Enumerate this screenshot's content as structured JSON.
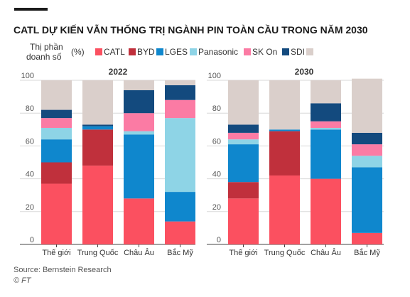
{
  "chart_data": {
    "type": "bar",
    "stacked": true,
    "title": "CATL DỰ KIẾN VẪN THỐNG TRỊ NGÀNH PIN TOÀN CẦU TRONG NĂM 2030",
    "legend_title": "Thị phần doanh số",
    "unit": "(%)",
    "legend_position": "top",
    "ylim": [
      0,
      100
    ],
    "yticks": [
      "0",
      "20",
      "40",
      "60",
      "80",
      "100"
    ],
    "grid": true,
    "source": "Source: Bernstein Research",
    "credit": "© FT",
    "categories": [
      "Thế giới",
      "Trung Quốc",
      "Châu Âu",
      "Bắc Mỹ"
    ],
    "series": [
      {
        "name": "CATL",
        "color": "#fb5060"
      },
      {
        "name": "BYD",
        "color": "#c0303c"
      },
      {
        "name": "LGES",
        "color": "#0f87cd"
      },
      {
        "name": "Panasonic",
        "color": "#8ed4e6"
      },
      {
        "name": "SK On",
        "color": "#fb7ba4"
      },
      {
        "name": "SDI",
        "color": "#134a7e"
      },
      {
        "name": "",
        "color": "#dacfcb"
      }
    ],
    "panels": [
      {
        "title": "2022",
        "values": {
          "CATL": [
            37,
            48,
            28,
            14
          ],
          "BYD": [
            13,
            22,
            0,
            0
          ],
          "LGES": [
            14,
            2,
            39,
            18
          ],
          "Panasonic": [
            7,
            0,
            2,
            45
          ],
          "SK On": [
            6,
            0,
            11,
            11
          ],
          "SDI": [
            5,
            1,
            14,
            9
          ],
          "": [
            18,
            27,
            6,
            3
          ]
        }
      },
      {
        "title": "2030",
        "values": {
          "CATL": [
            28,
            42,
            40,
            7
          ],
          "BYD": [
            10,
            27,
            0,
            0
          ],
          "LGES": [
            23,
            1,
            30,
            40
          ],
          "Panasonic": [
            3,
            0,
            1,
            7
          ],
          "SK On": [
            4,
            0,
            4,
            7
          ],
          "SDI": [
            5,
            0,
            11,
            7
          ],
          "": [
            27,
            30,
            14,
            33
          ]
        }
      }
    ]
  }
}
